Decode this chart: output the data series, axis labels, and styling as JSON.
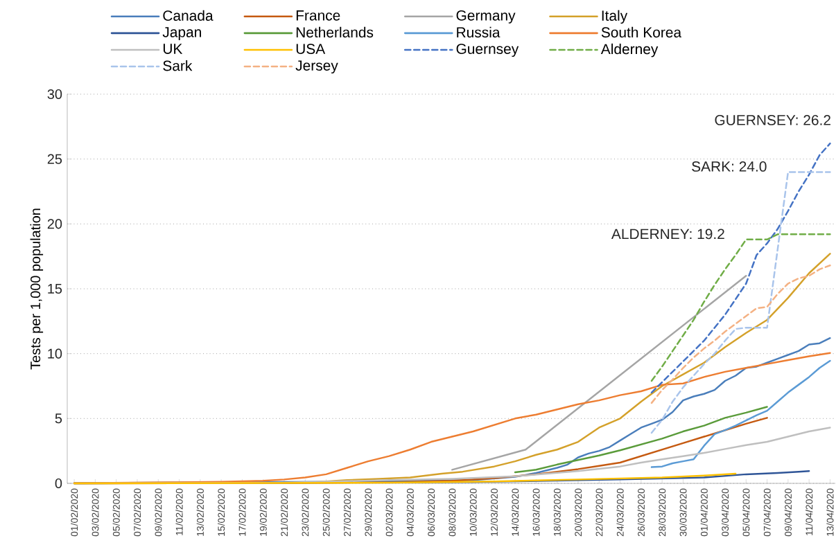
{
  "chart_data": {
    "type": "line",
    "ylabel": "Tests per 1,000 population",
    "xlim": [
      "2020-01-31T08:00",
      "2020-04-13T12:00"
    ],
    "ylim": [
      0,
      30
    ],
    "yticks": [
      0,
      5,
      10,
      15,
      20,
      25,
      30
    ],
    "xticks": [
      {
        "value": "2020-02-01",
        "label": "01/02/2020"
      },
      {
        "value": "2020-02-03",
        "label": "03/02/2020"
      },
      {
        "value": "2020-02-05",
        "label": "05/02/2020"
      },
      {
        "value": "2020-02-07",
        "label": "07/02/2020"
      },
      {
        "value": "2020-02-09",
        "label": "09/02/2020"
      },
      {
        "value": "2020-02-11",
        "label": "11/02/2020"
      },
      {
        "value": "2020-02-13",
        "label": "13/02/2020"
      },
      {
        "value": "2020-02-15",
        "label": "15/02/2020"
      },
      {
        "value": "2020-02-17",
        "label": "17/02/2020"
      },
      {
        "value": "2020-02-19",
        "label": "19/02/2020"
      },
      {
        "value": "2020-02-21",
        "label": "21/02/2020"
      },
      {
        "value": "2020-02-23",
        "label": "23/02/2020"
      },
      {
        "value": "2020-02-25",
        "label": "25/02/2020"
      },
      {
        "value": "2020-02-27",
        "label": "27/02/2020"
      },
      {
        "value": "2020-02-29",
        "label": "29/02/2020"
      },
      {
        "value": "2020-03-02",
        "label": "02/03/2020"
      },
      {
        "value": "2020-03-04",
        "label": "04/03/2020"
      },
      {
        "value": "2020-03-06",
        "label": "06/03/2020"
      },
      {
        "value": "2020-03-08",
        "label": "08/03/2020"
      },
      {
        "value": "2020-03-10",
        "label": "10/03/2020"
      },
      {
        "value": "2020-03-12",
        "label": "12/03/2020"
      },
      {
        "value": "2020-03-14",
        "label": "14/03/2020"
      },
      {
        "value": "2020-03-16",
        "label": "16/03/2020"
      },
      {
        "value": "2020-03-18",
        "label": "18/03/2020"
      },
      {
        "value": "2020-03-20",
        "label": "20/03/2020"
      },
      {
        "value": "2020-03-22",
        "label": "22/03/2020"
      },
      {
        "value": "2020-03-24",
        "label": "24/03/2020"
      },
      {
        "value": "2020-03-26",
        "label": "26/03/2020"
      },
      {
        "value": "2020-03-28",
        "label": "28/03/2020"
      },
      {
        "value": "2020-03-30",
        "label": "30/03/2020"
      },
      {
        "value": "2020-04-01",
        "label": "01/04/2020"
      },
      {
        "value": "2020-04-03",
        "label": "03/04/2020"
      },
      {
        "value": "2020-04-05",
        "label": "05/04/2020"
      },
      {
        "value": "2020-04-07",
        "label": "07/04/2020"
      },
      {
        "value": "2020-04-09",
        "label": "09/04/2020"
      },
      {
        "value": "2020-04-11",
        "label": "11/04/2020"
      },
      {
        "value": "2020-04-13",
        "label": "13/04/2020"
      }
    ],
    "grid": "y",
    "legend": "top",
    "line_style": "solid",
    "annotations": [
      {
        "text": "GUERNSEY: 26.2",
        "x": "2020-04-13",
        "y": 26.2
      },
      {
        "text": "SARK: 24.0",
        "x": "2020-04-09",
        "y": 24.0
      },
      {
        "text": "ALDERNEY: 19.2",
        "x": "2020-04-05",
        "y": 18.8
      }
    ],
    "series": [
      {
        "name": "Canada",
        "color": "#4a7ebb",
        "x": [
          "2020-02-01",
          "2020-03-01",
          "2020-03-10",
          "2020-03-14",
          "2020-03-16",
          "2020-03-18",
          "2020-03-19",
          "2020-03-20",
          "2020-03-21",
          "2020-03-22",
          "2020-03-23",
          "2020-03-24",
          "2020-03-25",
          "2020-03-26",
          "2020-03-27",
          "2020-03-28",
          "2020-03-29",
          "2020-03-30",
          "2020-03-31",
          "2020-04-01",
          "2020-04-02",
          "2020-04-03",
          "2020-04-04",
          "2020-04-05",
          "2020-04-06",
          "2020-04-07",
          "2020-04-08",
          "2020-04-09",
          "2020-04-10",
          "2020-04-11",
          "2020-04-12",
          "2020-04-13"
        ],
        "values": [
          0.02,
          0.15,
          0.25,
          0.5,
          0.8,
          1.2,
          1.45,
          2.0,
          2.3,
          2.5,
          2.8,
          3.3,
          3.8,
          4.3,
          4.6,
          4.9,
          5.5,
          6.4,
          6.7,
          6.9,
          7.2,
          7.9,
          8.3,
          8.9,
          9.0,
          9.3,
          9.6,
          9.9,
          10.2,
          10.7,
          10.8,
          11.2
        ]
      },
      {
        "name": "France",
        "color": "#c55a11",
        "x": [
          "2020-02-01",
          "2020-02-21",
          "2020-03-02",
          "2020-03-08",
          "2020-03-12",
          "2020-03-16",
          "2020-03-20",
          "2020-03-22",
          "2020-03-24",
          "2020-03-26",
          "2020-03-28",
          "2020-03-30",
          "2020-04-01",
          "2020-04-03",
          "2020-04-05",
          "2020-04-07"
        ],
        "values": [
          0,
          0.02,
          0.1,
          0.2,
          0.4,
          0.7,
          1.1,
          1.35,
          1.6,
          2.1,
          2.6,
          3.1,
          3.6,
          4.1,
          4.6,
          5.05
        ]
      },
      {
        "name": "Germany",
        "color": "#a5a5a5",
        "x": [
          "2020-03-08",
          "2020-03-15",
          "2020-04-05"
        ],
        "values": [
          1.05,
          2.6,
          16.0
        ]
      },
      {
        "name": "Italy",
        "color": "#d4a12a",
        "x": [
          "2020-02-01",
          "2020-02-20",
          "2020-02-24",
          "2020-02-27",
          "2020-03-01",
          "2020-03-04",
          "2020-03-07",
          "2020-03-09",
          "2020-03-12",
          "2020-03-14",
          "2020-03-16",
          "2020-03-18",
          "2020-03-20",
          "2020-03-22",
          "2020-03-24",
          "2020-03-26",
          "2020-03-28",
          "2020-03-30",
          "2020-04-01",
          "2020-04-03",
          "2020-04-05",
          "2020-04-07",
          "2020-04-09",
          "2020-04-11",
          "2020-04-13"
        ],
        "values": [
          0,
          0.03,
          0.1,
          0.25,
          0.35,
          0.45,
          0.75,
          0.9,
          1.3,
          1.7,
          2.2,
          2.6,
          3.2,
          4.3,
          5.0,
          6.3,
          7.5,
          8.4,
          9.3,
          10.5,
          11.6,
          12.6,
          14.3,
          16.2,
          17.7
        ]
      },
      {
        "name": "Japan",
        "color": "#2f5597",
        "x": [
          "2020-02-01",
          "2020-03-10",
          "2020-03-24",
          "2020-04-01",
          "2020-04-05",
          "2020-04-08",
          "2020-04-10",
          "2020-04-11"
        ],
        "values": [
          0,
          0.1,
          0.3,
          0.45,
          0.7,
          0.8,
          0.9,
          0.95
        ]
      },
      {
        "name": "Netherlands",
        "color": "#5a9b3a",
        "x": [
          "2020-03-14",
          "2020-03-16",
          "2020-03-18",
          "2020-03-20",
          "2020-03-22",
          "2020-03-24",
          "2020-03-26",
          "2020-03-28",
          "2020-03-30",
          "2020-04-01",
          "2020-04-03",
          "2020-04-05",
          "2020-04-07"
        ],
        "values": [
          0.85,
          1.05,
          1.45,
          1.8,
          2.15,
          2.55,
          3.0,
          3.45,
          4.0,
          4.45,
          5.05,
          5.45,
          5.9
        ]
      },
      {
        "name": "Russia",
        "color": "#5b9bd5",
        "x": [
          "2020-03-27",
          "2020-03-28",
          "2020-03-29",
          "2020-03-30",
          "2020-03-31",
          "2020-04-01",
          "2020-04-02",
          "2020-04-03",
          "2020-04-04",
          "2020-04-05",
          "2020-04-06",
          "2020-04-07",
          "2020-04-08",
          "2020-04-09",
          "2020-04-10",
          "2020-04-11",
          "2020-04-12",
          "2020-04-13"
        ],
        "values": [
          1.25,
          1.3,
          1.55,
          1.7,
          1.85,
          2.9,
          3.8,
          4.1,
          4.45,
          4.85,
          5.25,
          5.6,
          6.3,
          7.0,
          7.6,
          8.2,
          8.9,
          9.45
        ]
      },
      {
        "name": "South Korea",
        "color": "#ed7d31",
        "x": [
          "2020-02-01",
          "2020-02-10",
          "2020-02-15",
          "2020-02-19",
          "2020-02-21",
          "2020-02-23",
          "2020-02-25",
          "2020-02-27",
          "2020-02-29",
          "2020-03-02",
          "2020-03-04",
          "2020-03-06",
          "2020-03-08",
          "2020-03-10",
          "2020-03-12",
          "2020-03-14",
          "2020-03-16",
          "2020-03-18",
          "2020-03-20",
          "2020-03-22",
          "2020-03-24",
          "2020-03-26",
          "2020-03-28",
          "2020-03-30",
          "2020-04-01",
          "2020-04-03",
          "2020-04-05",
          "2020-04-07",
          "2020-04-09",
          "2020-04-11",
          "2020-04-13"
        ],
        "values": [
          0.02,
          0.08,
          0.12,
          0.2,
          0.3,
          0.45,
          0.7,
          1.2,
          1.7,
          2.1,
          2.6,
          3.2,
          3.6,
          4.0,
          4.5,
          5.0,
          5.3,
          5.7,
          6.1,
          6.4,
          6.8,
          7.1,
          7.6,
          7.7,
          8.2,
          8.6,
          8.9,
          9.2,
          9.5,
          9.8,
          10.05
        ]
      },
      {
        "name": "UK",
        "color": "#bfbfbf",
        "x": [
          "2020-02-01",
          "2020-02-21",
          "2020-03-02",
          "2020-03-08",
          "2020-03-14",
          "2020-03-20",
          "2020-03-24",
          "2020-03-26",
          "2020-03-28",
          "2020-03-30",
          "2020-04-01",
          "2020-04-03",
          "2020-04-05",
          "2020-04-07",
          "2020-04-09",
          "2020-04-11",
          "2020-04-13"
        ],
        "values": [
          0,
          0.05,
          0.25,
          0.35,
          0.55,
          0.95,
          1.3,
          1.6,
          1.85,
          2.1,
          2.35,
          2.65,
          2.95,
          3.2,
          3.6,
          4.0,
          4.3
        ]
      },
      {
        "name": "USA",
        "color": "#ffc000",
        "x": [
          "2020-02-01",
          "2020-03-02",
          "2020-03-12",
          "2020-03-20",
          "2020-03-28",
          "2020-04-01",
          "2020-04-04"
        ],
        "values": [
          0,
          0.05,
          0.15,
          0.3,
          0.45,
          0.6,
          0.75
        ]
      },
      {
        "name": "Guernsey",
        "color": "#4472c4",
        "line_style": "dashed",
        "x": [
          "2020-03-27",
          "2020-03-28",
          "2020-03-29",
          "2020-03-30",
          "2020-03-31",
          "2020-04-01",
          "2020-04-02",
          "2020-04-03",
          "2020-04-04",
          "2020-04-05",
          "2020-04-06",
          "2020-04-07",
          "2020-04-08",
          "2020-04-09",
          "2020-04-10",
          "2020-04-11",
          "2020-04-12",
          "2020-04-13"
        ],
        "values": [
          7.0,
          7.8,
          8.6,
          9.4,
          10.2,
          11.0,
          12.0,
          13.0,
          14.2,
          15.4,
          17.6,
          18.5,
          19.6,
          21.0,
          22.5,
          23.8,
          25.3,
          26.2
        ]
      },
      {
        "name": "Alderney",
        "color": "#70ad47",
        "line_style": "dashed",
        "x": [
          "2020-03-27",
          "2020-03-28",
          "2020-03-29",
          "2020-03-30",
          "2020-03-31",
          "2020-04-01",
          "2020-04-02",
          "2020-04-03",
          "2020-04-04",
          "2020-04-05",
          "2020-04-06",
          "2020-04-07",
          "2020-04-08",
          "2020-04-09",
          "2020-04-10",
          "2020-04-11",
          "2020-04-12",
          "2020-04-13"
        ],
        "values": [
          7.9,
          9.0,
          10.2,
          11.4,
          12.6,
          14.0,
          15.3,
          16.5,
          17.6,
          18.8,
          18.8,
          18.8,
          19.2,
          19.2,
          19.2,
          19.2,
          19.2,
          19.2
        ]
      },
      {
        "name": "Sark",
        "color": "#a9c4eb",
        "line_style": "dashed",
        "x": [
          "2020-03-27",
          "2020-03-28",
          "2020-03-29",
          "2020-03-30",
          "2020-03-31",
          "2020-04-01",
          "2020-04-02",
          "2020-04-03",
          "2020-04-04",
          "2020-04-05",
          "2020-04-06",
          "2020-04-07",
          "2020-04-08",
          "2020-04-09",
          "2020-04-10",
          "2020-04-11",
          "2020-04-12",
          "2020-04-13"
        ],
        "values": [
          3.9,
          4.9,
          6.3,
          7.4,
          8.3,
          9.2,
          10.0,
          11.0,
          11.9,
          12.0,
          12.0,
          12.0,
          18.0,
          24.0,
          24.0,
          24.0,
          24.0,
          24.0
        ]
      },
      {
        "name": "Jersey",
        "color": "#f4b183",
        "line_style": "dashed",
        "x": [
          "2020-03-27",
          "2020-03-28",
          "2020-03-29",
          "2020-03-30",
          "2020-03-31",
          "2020-04-01",
          "2020-04-02",
          "2020-04-03",
          "2020-04-04",
          "2020-04-05",
          "2020-04-06",
          "2020-04-07",
          "2020-04-08",
          "2020-04-09",
          "2020-04-10",
          "2020-04-11",
          "2020-04-12",
          "2020-04-13"
        ],
        "values": [
          6.2,
          7.2,
          8.0,
          8.9,
          9.7,
          10.4,
          11.0,
          11.7,
          12.3,
          12.9,
          13.5,
          13.6,
          14.6,
          15.4,
          15.8,
          16.0,
          16.5,
          16.8
        ]
      }
    ]
  }
}
